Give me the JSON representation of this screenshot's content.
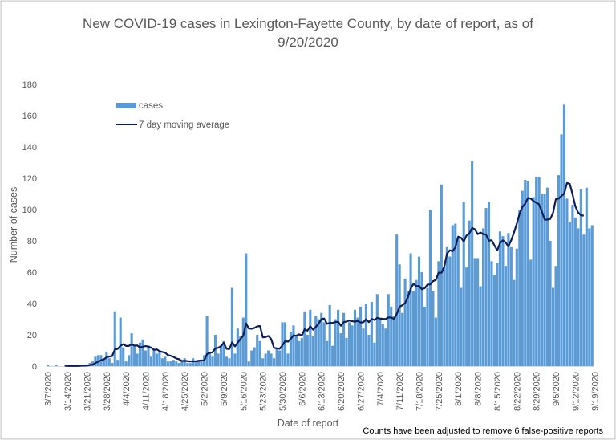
{
  "chart_data": {
    "type": "bar",
    "title": "New COVID-19 cases in Lexington-Fayette County, by date of report, as of 9/20/2020",
    "title_lines": [
      "New COVID-19 cases in Lexington-Fayette County, by date of report, as of",
      "9/20/2020"
    ],
    "xlabel": "Date of report",
    "ylabel": "Number of cases",
    "ylim": [
      0,
      180
    ],
    "yticks": [
      0,
      20,
      40,
      60,
      80,
      100,
      120,
      140,
      160,
      180
    ],
    "grid": false,
    "legend_position": "top-left",
    "start_date": "3/7/2020",
    "xtick_labels": [
      "3/7/2020",
      "3/14/2020",
      "3/21/2020",
      "3/28/2020",
      "4/4/2020",
      "4/11/2020",
      "4/18/2020",
      "4/25/2020",
      "5/2/2020",
      "5/9/2020",
      "5/16/2020",
      "5/23/2020",
      "5/30/2020",
      "6/6/2020",
      "6/13/2020",
      "6/20/2020",
      "6/27/2020",
      "7/4/2020",
      "7/11/2020",
      "7/18/2020",
      "7/25/2020",
      "8/1/2020",
      "8/8/2020",
      "8/15/2020",
      "8/22/2020",
      "8/29/2020",
      "9/5/2020",
      "9/12/2020",
      "9/19/2020"
    ],
    "annotation": "Counts have been adjusted to remove 6 false-positive reports",
    "series": [
      {
        "name": "cases",
        "type": "bar",
        "color": "#5b9bd5",
        "values": [
          1,
          0,
          0,
          1,
          0,
          0,
          0,
          0,
          0,
          0,
          0,
          0,
          1,
          0,
          1,
          2,
          3,
          6,
          7,
          7,
          5,
          9,
          5,
          2,
          35,
          4,
          31,
          12,
          3,
          7,
          21,
          13,
          8,
          15,
          17,
          10,
          13,
          6,
          11,
          8,
          9,
          5,
          6,
          3,
          3,
          4,
          3,
          2,
          3,
          5,
          2,
          2,
          5,
          3,
          4,
          3,
          7,
          32,
          8,
          6,
          20,
          8,
          13,
          16,
          6,
          5,
          50,
          8,
          24,
          19,
          31,
          72,
          3,
          10,
          12,
          20,
          16,
          5,
          8,
          10,
          8,
          5,
          12,
          10,
          28,
          28,
          8,
          22,
          26,
          20,
          16,
          18,
          35,
          20,
          36,
          19,
          32,
          30,
          34,
          28,
          16,
          39,
          13,
          30,
          36,
          21,
          34,
          18,
          28,
          26,
          36,
          31,
          38,
          24,
          40,
          20,
          41,
          15,
          46,
          30,
          27,
          24,
          46,
          38,
          32,
          84,
          65,
          34,
          56,
          48,
          72,
          48,
          55,
          70,
          60,
          38,
          50,
          100,
          48,
          31,
          67,
          116,
          63,
          76,
          70,
          90,
          91,
          82,
          50,
          105,
          63,
          93,
          131,
          69,
          69,
          51,
          88,
          101,
          105,
          67,
          58,
          66,
          86,
          83,
          64,
          85,
          76,
          55,
          75,
          100,
          112,
          119,
          118,
          68,
          108,
          121,
          121,
          110,
          110,
          114,
          80,
          50,
          64,
          122,
          148,
          167,
          107,
          92,
          103,
          95,
          88,
          113,
          84,
          114,
          88,
          90
        ]
      },
      {
        "name": "7 day moving average",
        "type": "line",
        "color": "#0d1d5a",
        "values": [
          null,
          null,
          null,
          null,
          null,
          null,
          0.3,
          0.1,
          0.1,
          0.1,
          0.1,
          0.1,
          0.3,
          0.3,
          0.4,
          0.6,
          1.0,
          1.9,
          2.9,
          3.7,
          4.3,
          5.6,
          6.1,
          6.4,
          10.6,
          11.0,
          13.0,
          14.0,
          12.9,
          12.9,
          14.0,
          13.1,
          13.2,
          11.9,
          12.4,
          12.8,
          12.5,
          11.8,
          10.4,
          10.7,
          9.6,
          9.0,
          8.6,
          7.0,
          6.6,
          5.9,
          4.9,
          4.4,
          3.3,
          3.4,
          3.2,
          3.0,
          3.1,
          3.1,
          3.4,
          3.6,
          3.7,
          7.7,
          8.5,
          8.9,
          11.3,
          11.7,
          12.7,
          14.9,
          11.1,
          10.9,
          15.2,
          12.6,
          15.0,
          17.4,
          19.4,
          27.3,
          24.0,
          23.9,
          24.4,
          25.4,
          25.6,
          18.4,
          18.6,
          19.3,
          17.3,
          11.7,
          11.3,
          11.1,
          13.1,
          16.0,
          15.6,
          17.4,
          19.7,
          19.4,
          20.3,
          19.6,
          23.6,
          22.6,
          25.4,
          23.3,
          25.0,
          27.2,
          30.0,
          30.4,
          27.0,
          27.6,
          27.6,
          28.2,
          28.3,
          25.8,
          28.1,
          28.5,
          29.1,
          28.7,
          28.4,
          28.9,
          27.9,
          28.0,
          29.9,
          28.1,
          30.1,
          29.5,
          30.8,
          30.4,
          30.2,
          30.1,
          31.1,
          31.1,
          30.1,
          33.4,
          37.9,
          38.9,
          40.3,
          44.1,
          49.6,
          52.6,
          51.1,
          51.2,
          49.1,
          49.8,
          52.1,
          52.2,
          54.3,
          55.1,
          59.7,
          59.6,
          63.4,
          71.8,
          74.0,
          73.4,
          75.9,
          82.7,
          82.0,
          79.6,
          83.5,
          84.7,
          88.3,
          87.4,
          84.3,
          85.3,
          84.3,
          84.0,
          80.1,
          80.4,
          77.1,
          73.9,
          78.6,
          80.3,
          79.0,
          76.4,
          80.4,
          85.3,
          90.9,
          97.4,
          101.7,
          103.7,
          107.4,
          107.0,
          105.4,
          104.4,
          103.3,
          98.7,
          93.6,
          93.6,
          94.0,
          98.0,
          106.6,
          107.0,
          108.6,
          110.3,
          117.0,
          116.4,
          109.7,
          102.0,
          98.1,
          96.4,
          96.1
        ]
      }
    ]
  }
}
